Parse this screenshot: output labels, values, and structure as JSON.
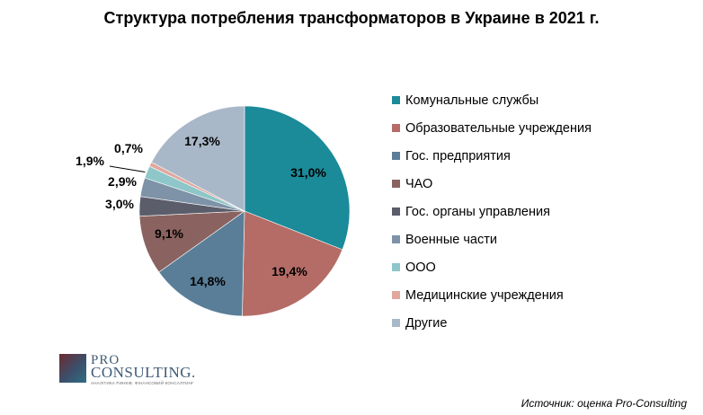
{
  "chart_data": {
    "type": "pie",
    "title": "Структура потребления трансформаторов в Украине в 2021 г.",
    "categories": [
      "Комунальные службы",
      "Образовательные учреждения",
      "Гос. предприятия",
      "ЧАО",
      "Гос. органы управления",
      "Военные части",
      "ООО",
      "Медицинские учреждения",
      "Другие"
    ],
    "values": [
      31.0,
      19.4,
      14.8,
      9.1,
      3.0,
      2.9,
      1.9,
      0.7,
      17.3
    ],
    "data_labels": [
      "31,0%",
      "19,4%",
      "14,8%",
      "9,1%",
      "3,0%",
      "2,9%",
      "1,9%",
      "0,7%",
      "17,3%"
    ],
    "colors": [
      "#1b8a99",
      "#b56c66",
      "#5a7e98",
      "#8a6360",
      "#5b5d6b",
      "#7e93a8",
      "#8ec6c9",
      "#e0a79d",
      "#a9b8c8"
    ],
    "legend_position": "right",
    "start_angle_deg": 0,
    "direction": "clockwise"
  },
  "logo": {
    "line1": "PRO",
    "line2": "CONSULTING.",
    "tagline": "АНАЛІТИКА РИНКІВ. ФІНАНСОВИЙ КОНСАЛТИНГ"
  },
  "source": "Источник: оценка Pro-Consulting"
}
